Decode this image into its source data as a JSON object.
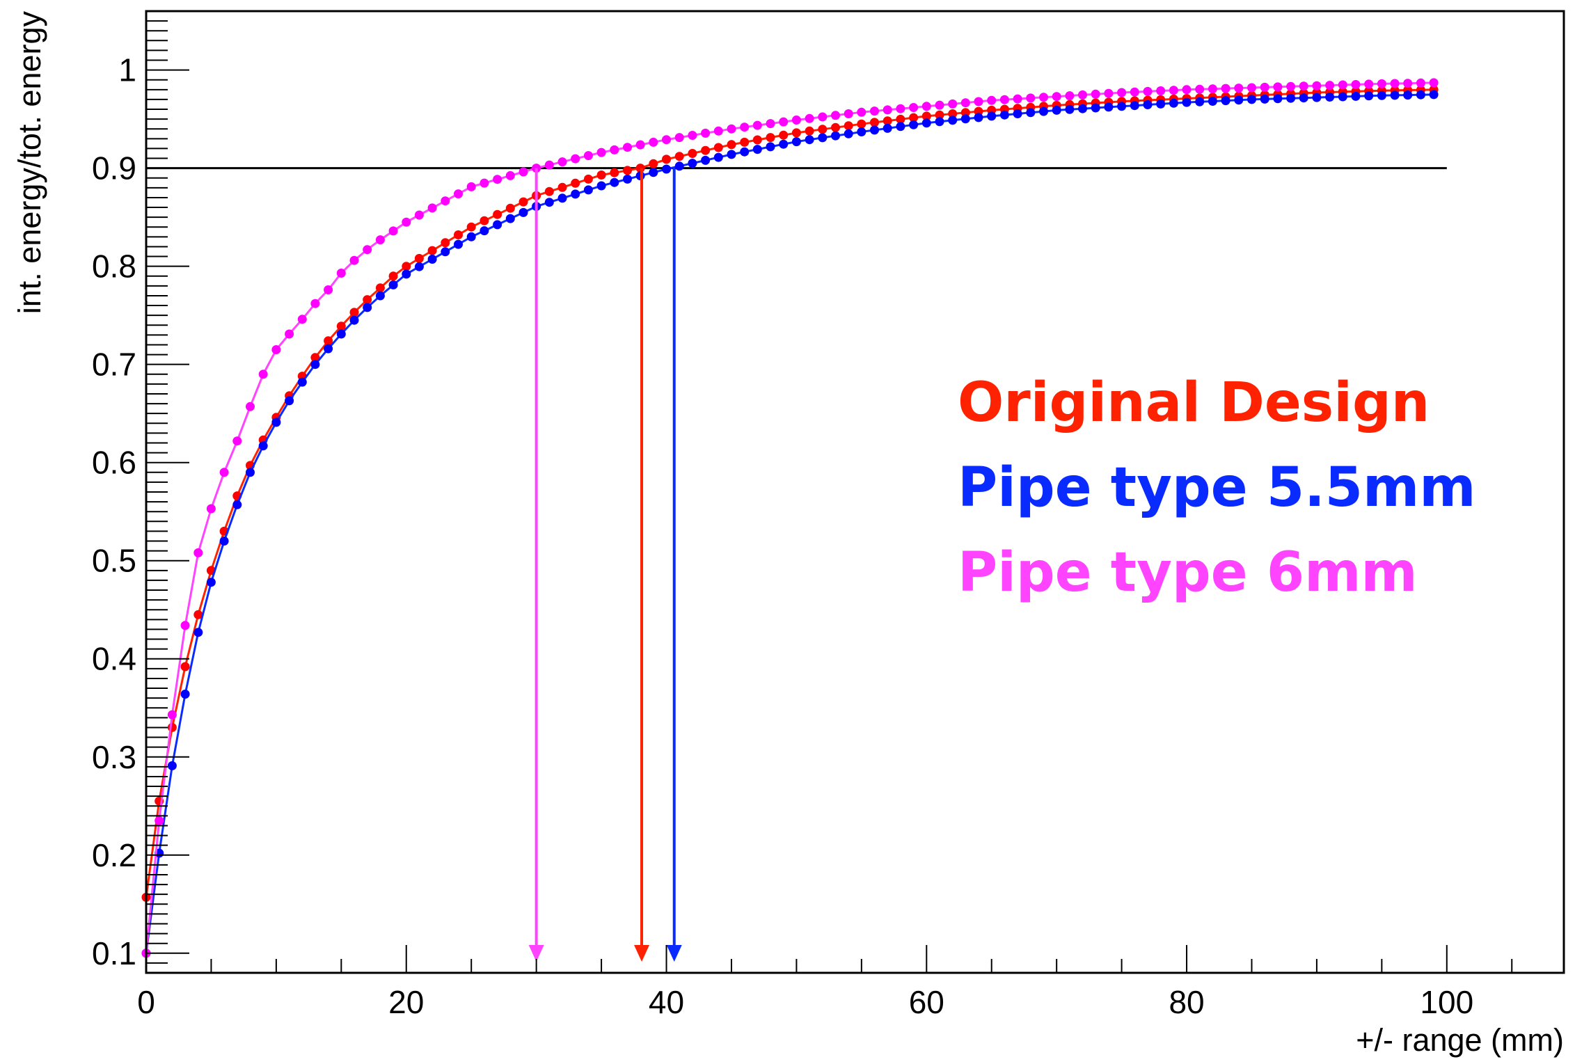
{
  "chart_data": {
    "type": "line",
    "title": "",
    "xlabel": "+/- range (mm)",
    "ylabel": "int. energy/tot. energy",
    "xlim": [
      0,
      109
    ],
    "ylim": [
      0.08,
      1.06
    ],
    "grid": false,
    "x_ticks": [
      0,
      20,
      40,
      60,
      80,
      100
    ],
    "x_tick_labels": [
      "0",
      "20",
      "40",
      "60",
      "80",
      "100"
    ],
    "y_ticks": [
      0.1,
      0.2,
      0.3,
      0.4,
      0.5,
      0.6,
      0.7,
      0.8,
      0.9,
      1.0
    ],
    "y_tick_labels": [
      "0.1",
      "0.2",
      "0.3",
      "0.4",
      "0.5",
      "0.6",
      "0.7",
      "0.8",
      "0.9",
      "1"
    ],
    "reference_line": {
      "y": 0.9,
      "x_range": [
        0,
        100
      ],
      "color": "#000000"
    },
    "legend_placement": "center-right",
    "series": [
      {
        "name": "Original Design",
        "color": "#ff2200",
        "marker_color": "#ff0000",
        "arrow_x": 38.1,
        "points": [
          [
            0,
            0.157
          ],
          [
            1,
            0.255
          ],
          [
            2,
            0.33
          ],
          [
            3,
            0.392
          ],
          [
            4,
            0.445
          ],
          [
            5,
            0.49
          ],
          [
            6,
            0.53
          ],
          [
            7,
            0.566
          ],
          [
            8,
            0.597
          ],
          [
            9,
            0.623
          ],
          [
            10,
            0.646
          ],
          [
            11,
            0.668
          ],
          [
            12,
            0.688
          ],
          [
            13,
            0.707
          ],
          [
            14,
            0.724
          ],
          [
            15,
            0.739
          ],
          [
            16,
            0.753
          ],
          [
            17,
            0.766
          ],
          [
            18,
            0.778
          ],
          [
            19,
            0.79
          ],
          [
            20,
            0.8
          ],
          [
            25,
            0.84
          ],
          [
            30,
            0.872
          ],
          [
            35,
            0.893
          ],
          [
            38,
            0.9
          ],
          [
            40,
            0.909
          ],
          [
            45,
            0.924
          ],
          [
            50,
            0.936
          ],
          [
            55,
            0.945
          ],
          [
            60,
            0.953
          ],
          [
            65,
            0.959
          ],
          [
            70,
            0.964
          ],
          [
            75,
            0.968
          ],
          [
            80,
            0.971
          ],
          [
            85,
            0.974
          ],
          [
            90,
            0.977
          ],
          [
            95,
            0.979
          ],
          [
            99,
            0.98
          ]
        ]
      },
      {
        "name": "Pipe type 5.5mm",
        "color": "#0a2bff",
        "marker_color": "#0000ff",
        "arrow_x": 40.6,
        "points": [
          [
            0,
            0.1
          ],
          [
            1,
            0.202
          ],
          [
            2,
            0.291
          ],
          [
            3,
            0.364
          ],
          [
            4,
            0.427
          ],
          [
            5,
            0.478
          ],
          [
            6,
            0.52
          ],
          [
            7,
            0.557
          ],
          [
            8,
            0.59
          ],
          [
            9,
            0.617
          ],
          [
            10,
            0.641
          ],
          [
            11,
            0.663
          ],
          [
            12,
            0.682
          ],
          [
            13,
            0.7
          ],
          [
            14,
            0.716
          ],
          [
            15,
            0.731
          ],
          [
            16,
            0.745
          ],
          [
            17,
            0.758
          ],
          [
            18,
            0.77
          ],
          [
            19,
            0.781
          ],
          [
            20,
            0.792
          ],
          [
            25,
            0.83
          ],
          [
            30,
            0.861
          ],
          [
            35,
            0.882
          ],
          [
            40,
            0.899
          ],
          [
            45,
            0.914
          ],
          [
            50,
            0.927
          ],
          [
            55,
            0.937
          ],
          [
            60,
            0.946
          ],
          [
            65,
            0.953
          ],
          [
            70,
            0.959
          ],
          [
            75,
            0.963
          ],
          [
            80,
            0.967
          ],
          [
            85,
            0.97
          ],
          [
            90,
            0.972
          ],
          [
            95,
            0.974
          ],
          [
            99,
            0.975
          ]
        ]
      },
      {
        "name": "Pipe type 6mm",
        "color": "#ff44ff",
        "marker_color": "#ff00ff",
        "arrow_x": 30.0,
        "points": [
          [
            0,
            0.1
          ],
          [
            1,
            0.235
          ],
          [
            2,
            0.343
          ],
          [
            3,
            0.434
          ],
          [
            4,
            0.508
          ],
          [
            5,
            0.553
          ],
          [
            6,
            0.59
          ],
          [
            7,
            0.622
          ],
          [
            8,
            0.657
          ],
          [
            9,
            0.69
          ],
          [
            10,
            0.715
          ],
          [
            11,
            0.731
          ],
          [
            12,
            0.746
          ],
          [
            13,
            0.762
          ],
          [
            14,
            0.776
          ],
          [
            15,
            0.793
          ],
          [
            16,
            0.806
          ],
          [
            17,
            0.817
          ],
          [
            18,
            0.827
          ],
          [
            19,
            0.836
          ],
          [
            20,
            0.845
          ],
          [
            25,
            0.881
          ],
          [
            30,
            0.9
          ],
          [
            35,
            0.916
          ],
          [
            40,
            0.929
          ],
          [
            45,
            0.94
          ],
          [
            50,
            0.949
          ],
          [
            55,
            0.957
          ],
          [
            60,
            0.963
          ],
          [
            65,
            0.969
          ],
          [
            70,
            0.973
          ],
          [
            75,
            0.977
          ],
          [
            80,
            0.98
          ],
          [
            85,
            0.982
          ],
          [
            90,
            0.984
          ],
          [
            95,
            0.986
          ],
          [
            99,
            0.987
          ]
        ]
      }
    ]
  }
}
